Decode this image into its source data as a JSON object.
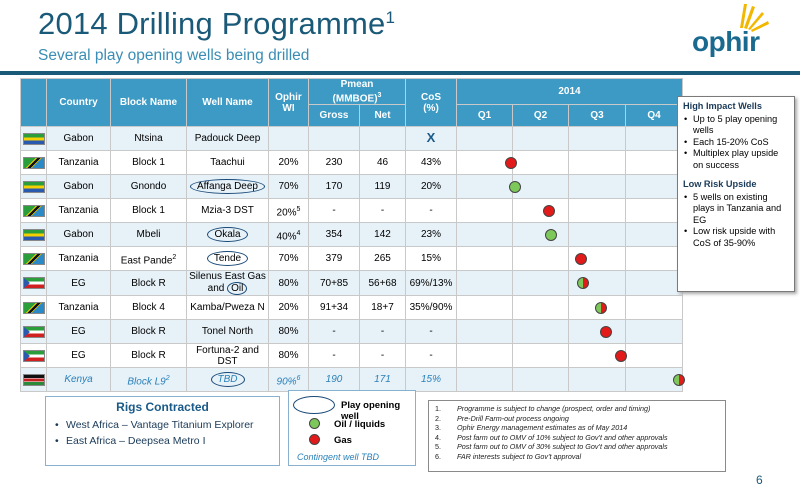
{
  "header": {
    "title": "2014 Drilling Programme",
    "title_superscript": "1",
    "subtitle": "Several play opening wells being drilled",
    "logo_text": "ophir"
  },
  "table": {
    "columns": {
      "country": "Country",
      "block": "Block Name",
      "well": "Well Name",
      "wi_line1": "Ophir",
      "wi_line2": "WI",
      "pmean": "Pmean",
      "pmean_unit": "(MMBOE)",
      "pmean_unit_sup": "3",
      "gross": "Gross",
      "net": "Net",
      "cos_line1": "CoS",
      "cos_line2": "(%)",
      "year": "2014",
      "q1": "Q1",
      "q2": "Q2",
      "q3": "Q3",
      "q4": "Q4"
    },
    "rows": [
      {
        "flag": "gabon",
        "country": "Gabon",
        "block": "Ntsina",
        "well": "Padouck Deep",
        "wi": "",
        "wi_sup": "",
        "gross": "",
        "net": "",
        "cos": "X",
        "timeline": null
      },
      {
        "flag": "tanzania",
        "country": "Tanzania",
        "block": "Block 1",
        "well": "Taachui",
        "wi": "20%",
        "wi_sup": "",
        "gross": "230",
        "net": "46",
        "cos": "43%",
        "timeline": {
          "x": 0.24,
          "type": "gas"
        }
      },
      {
        "flag": "gabon",
        "country": "Gabon",
        "block": "Gnondo",
        "well": "Affanga Deep",
        "wi": "70%",
        "wi_sup": "",
        "gross": "170",
        "net": "119",
        "cos": "20%",
        "timeline": {
          "x": 0.26,
          "type": "oil"
        },
        "play_opening": true
      },
      {
        "flag": "tanzania",
        "country": "Tanzania",
        "block": "Block 1",
        "well": "Mzia-3 DST",
        "wi": "20%",
        "wi_sup": "5",
        "gross": "-",
        "net": "-",
        "cos": "-",
        "timeline": {
          "x": 0.41,
          "type": "gas"
        }
      },
      {
        "flag": "gabon",
        "country": "Gabon",
        "block": "Mbeli",
        "well": "Okala",
        "wi": "40%",
        "wi_sup": "4",
        "gross": "354",
        "net": "142",
        "cos": "23%",
        "timeline": {
          "x": 0.42,
          "type": "oil"
        },
        "play_opening": true
      },
      {
        "flag": "tanzania",
        "country": "Tanzania",
        "block": "East Pande",
        "block_sup": "2",
        "well": "Tende",
        "wi": "70%",
        "wi_sup": "",
        "gross": "379",
        "net": "265",
        "cos": "15%",
        "timeline": {
          "x": 0.55,
          "type": "gas"
        },
        "play_opening": true
      },
      {
        "flag": "eg",
        "country": "EG",
        "block": "Block R",
        "well": "Silenus East Gas",
        "well_line2_pre": "and ",
        "well_line2_oil": "Oil",
        "wi": "80%",
        "wi_sup": "",
        "gross": "70+85",
        "net": "56+68",
        "cos": "69%/13%",
        "timeline": {
          "x": 0.56,
          "type": "mix"
        }
      },
      {
        "flag": "tanzania",
        "country": "Tanzania",
        "block": "Block 4",
        "well": "Kamba/Pweza N",
        "wi": "20%",
        "wi_sup": "",
        "gross": "91+34",
        "net": "18+7",
        "cos": "35%/90%",
        "timeline": {
          "x": 0.64,
          "type": "mix"
        }
      },
      {
        "flag": "eg",
        "country": "EG",
        "block": "Block R",
        "well": "Tonel North",
        "wi": "80%",
        "wi_sup": "",
        "gross": "-",
        "net": "-",
        "cos": "-",
        "timeline": {
          "x": 0.66,
          "type": "gas"
        }
      },
      {
        "flag": "eg",
        "country": "EG",
        "block": "Block R",
        "well": "Fortuna-2 and",
        "well_line2": "DST",
        "wi": "80%",
        "wi_sup": "",
        "gross": "-",
        "net": "-",
        "cos": "-",
        "timeline": {
          "x": 0.73,
          "type": "gas"
        }
      },
      {
        "flag": "kenya",
        "country": "Kenya",
        "block": "Block L9",
        "block_sup": "2",
        "well": "TBD",
        "wi": "90%",
        "wi_sup": "6",
        "gross": "190",
        "net": "171",
        "cos": "15%",
        "timeline": {
          "x": 0.985,
          "type": "mix"
        },
        "play_opening": true,
        "contingent": true
      }
    ]
  },
  "sidebox": {
    "h1": "High Impact Wells",
    "b1": [
      "Up to 5 play opening wells",
      "Each 15-20% CoS",
      "Multiplex play upside on success"
    ],
    "h2": "Low Risk Upside",
    "b2": [
      "5 wells on existing plays in Tanzania and EG",
      "Low risk upside with CoS of 35-90%"
    ]
  },
  "rigs": {
    "title": "Rigs Contracted",
    "items": [
      "West Africa – Vantage Titanium Explorer",
      "East Africa – Deepsea Metro I"
    ]
  },
  "legend": {
    "play_opening": "Play opening well",
    "oil": "Oil / liquids",
    "gas": "Gas",
    "contingent": "Contingent well TBD"
  },
  "notes": [
    {
      "n": "1.",
      "t": "Programme is subject to change (prospect, order and timing)"
    },
    {
      "n": "2.",
      "t": "Pre-Drill Farm-out process ongoing"
    },
    {
      "n": "3.",
      "t": "Ophir Energy management estimates as of May 2014"
    },
    {
      "n": "4.",
      "t": "Post farm out to OMV of 10% subject to Gov’t and other approvals"
    },
    {
      "n": "5.",
      "t": "Post farm out to OMV of 30% subject to Gov’t and other approvals"
    },
    {
      "n": "6.",
      "t": "FAR interests subject to Gov’t approval"
    }
  ],
  "page_number": "6",
  "colors": {
    "accent": "#1a5a78",
    "header_bg": "#3d9ac4",
    "gas": "#e21a1a",
    "oil": "#7dc85a"
  }
}
